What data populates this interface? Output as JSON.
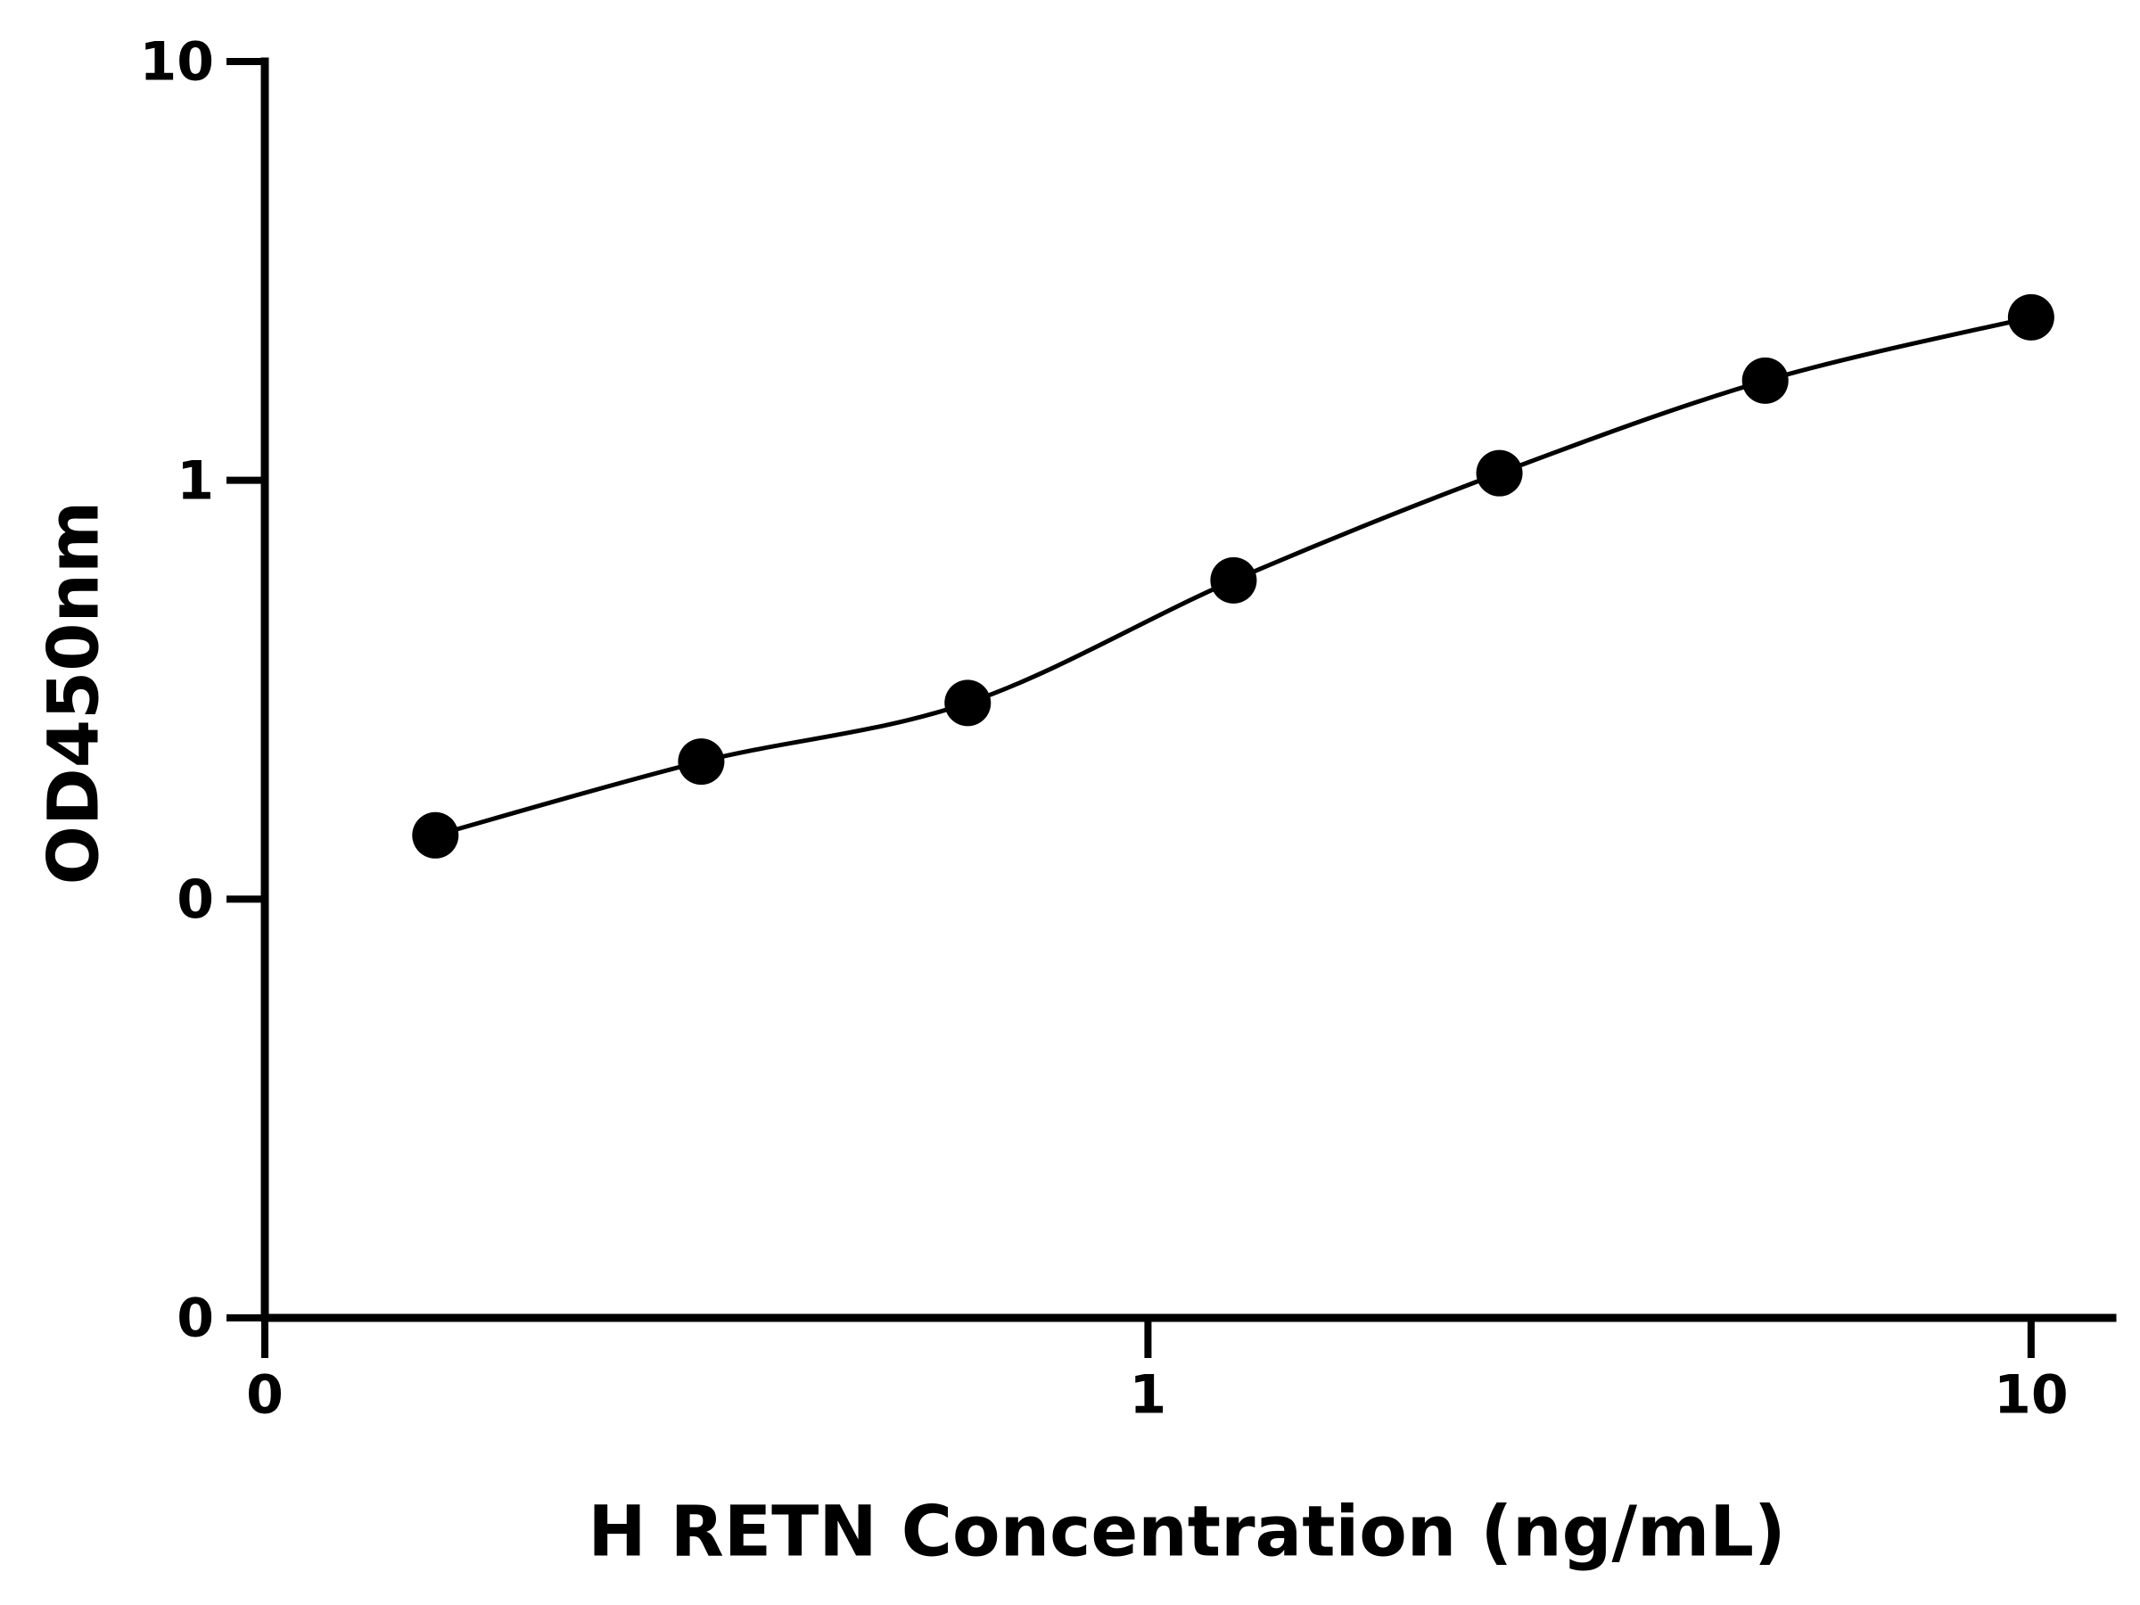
{
  "chart_data": {
    "type": "line",
    "x_label": "H RETN Concentration (ng/mL)",
    "y_label": "OD450nm",
    "x": [
      0.156,
      0.312,
      0.625,
      1.25,
      2.5,
      5,
      10
    ],
    "series": [
      {
        "color": "#000000",
        "values": [
          0.142,
          0.213,
          0.294,
          0.577,
          1.04,
          1.73,
          2.45
        ]
      }
    ],
    "xscale": "log",
    "yscale": "log",
    "xlim": [
      0.1,
      12.36
    ],
    "ylim": [
      0.01,
      10
    ],
    "xticks": [
      {
        "value": 0.1,
        "label": "0"
      },
      1,
      10
    ],
    "yticks": [
      {
        "value": 0.01,
        "label": "0"
      },
      {
        "value": 0.1,
        "label": "0"
      },
      1,
      10
    ],
    "grid": false
  }
}
